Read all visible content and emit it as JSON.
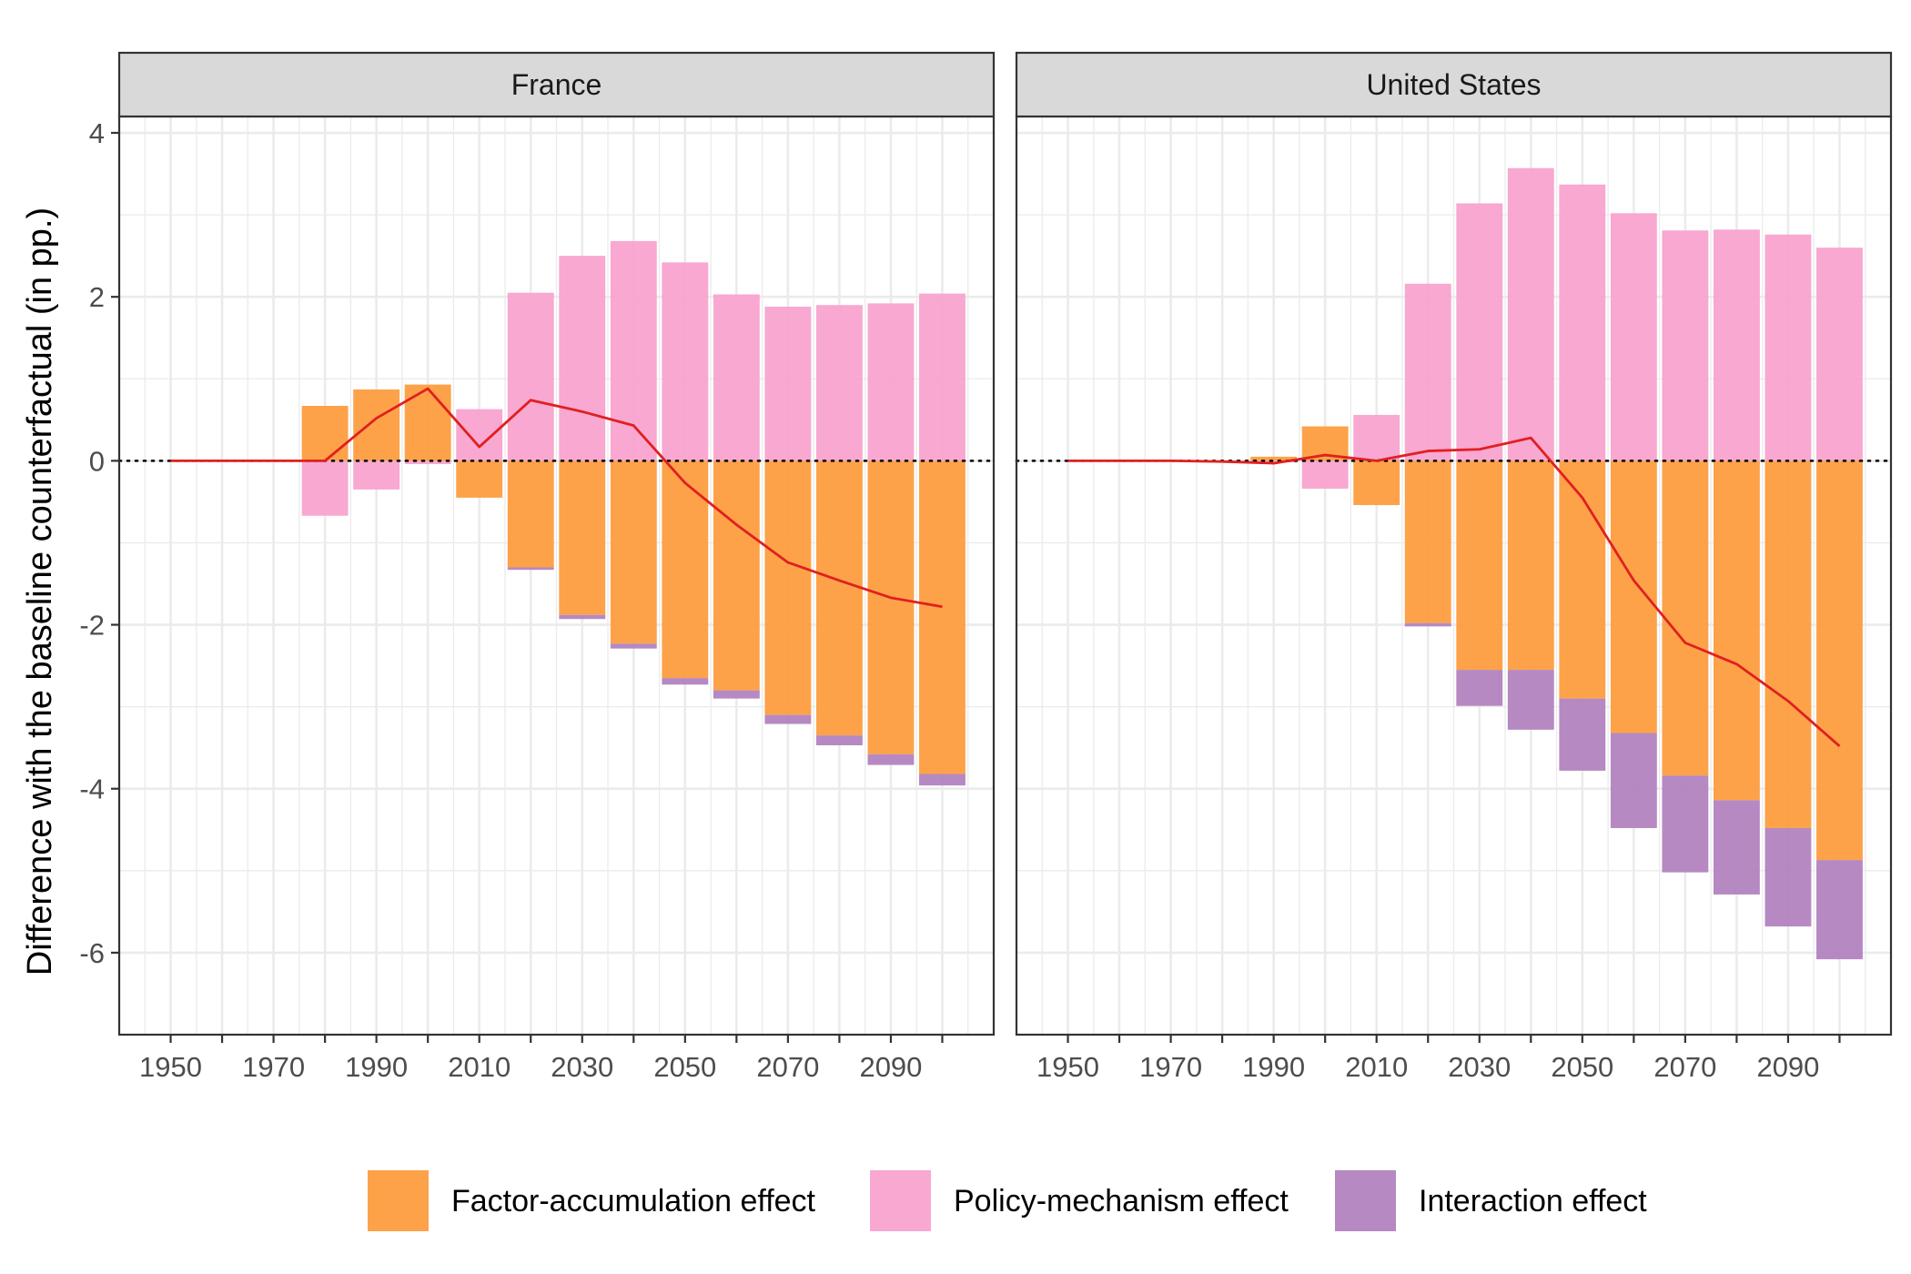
{
  "chart_data": {
    "type": "bar",
    "subtype": "stacked-bar-with-line, faceted",
    "ylabel": "Difference with the baseline counterfactual (in pp.)",
    "ylim": [
      -7.0,
      4.2
    ],
    "yticks": [
      4,
      2,
      0,
      -2,
      -4,
      -6
    ],
    "x_tick_labels": [
      "1950",
      "1970",
      "1990",
      "2010",
      "2030",
      "2050",
      "2070",
      "2090"
    ],
    "grid": true,
    "zero_line": "dotted",
    "legend_position": "bottom",
    "colors": {
      "factor": "#fd9a3a",
      "policy": "#f7a1cd",
      "interaction": "#b07fbd",
      "line": "#e02020",
      "strip_bg": "#d9d9d9",
      "grid": "#ebebeb"
    },
    "legend": [
      {
        "key": "factor",
        "label": "Factor-accumulation effect"
      },
      {
        "key": "policy",
        "label": "Policy-mechanism effect"
      },
      {
        "key": "interaction",
        "label": "Interaction effect"
      }
    ],
    "panels": [
      {
        "title": "France",
        "x": [
          1950,
          1960,
          1970,
          1980,
          1990,
          2000,
          2010,
          2020,
          2030,
          2040,
          2050,
          2060,
          2070,
          2080,
          2090,
          2100
        ],
        "series": [
          {
            "name": "Factor-accumulation effect",
            "key": "factor",
            "values": [
              0,
              0,
              0,
              0.67,
              0.87,
              0.93,
              -0.45,
              -1.3,
              -1.88,
              -2.23,
              -2.65,
              -2.8,
              -3.1,
              -3.35,
              -3.58,
              -3.82
            ]
          },
          {
            "name": "Policy-mechanism effect",
            "key": "policy",
            "values": [
              0,
              0,
              0,
              -0.67,
              -0.35,
              -0.04,
              0.63,
              2.05,
              2.5,
              2.68,
              2.42,
              2.03,
              1.88,
              1.9,
              1.92,
              2.04
            ]
          },
          {
            "name": "Interaction effect",
            "key": "interaction",
            "values": [
              0,
              0,
              0,
              0,
              0,
              0,
              0,
              -0.03,
              -0.05,
              -0.06,
              -0.08,
              -0.1,
              -0.11,
              -0.12,
              -0.13,
              -0.14
            ]
          }
        ],
        "total_line": [
          0,
          0,
          0,
          0,
          0.52,
          0.88,
          0.17,
          0.74,
          0.6,
          0.43,
          -0.27,
          -0.78,
          -1.24,
          -1.46,
          -1.67,
          -1.78
        ]
      },
      {
        "title": "United States",
        "x": [
          1950,
          1960,
          1970,
          1980,
          1990,
          2000,
          2010,
          2020,
          2030,
          2040,
          2050,
          2060,
          2070,
          2080,
          2090,
          2100
        ],
        "series": [
          {
            "name": "Factor-accumulation effect",
            "key": "factor",
            "values": [
              0,
              0,
              0,
              -0.01,
              0.05,
              0.42,
              -0.54,
              -1.98,
              -2.55,
              -2.55,
              -2.9,
              -3.32,
              -3.84,
              -4.14,
              -4.48,
              -4.87
            ]
          },
          {
            "name": "Policy-mechanism effect",
            "key": "policy",
            "values": [
              0,
              0,
              0,
              0,
              -0.02,
              -0.34,
              0.56,
              2.16,
              3.14,
              3.57,
              3.37,
              3.02,
              2.81,
              2.82,
              2.76,
              2.6
            ]
          },
          {
            "name": "Interaction effect",
            "key": "interaction",
            "values": [
              0,
              0,
              0,
              0,
              0,
              0,
              0,
              -0.04,
              -0.44,
              -0.73,
              -0.88,
              -1.16,
              -1.18,
              -1.15,
              -1.2,
              -1.21
            ]
          }
        ],
        "total_line": [
          0,
          0,
          0,
          -0.01,
          -0.03,
          0.07,
          0.0,
          0.12,
          0.14,
          0.28,
          -0.45,
          -1.46,
          -2.22,
          -2.48,
          -2.93,
          -3.48
        ]
      }
    ]
  }
}
